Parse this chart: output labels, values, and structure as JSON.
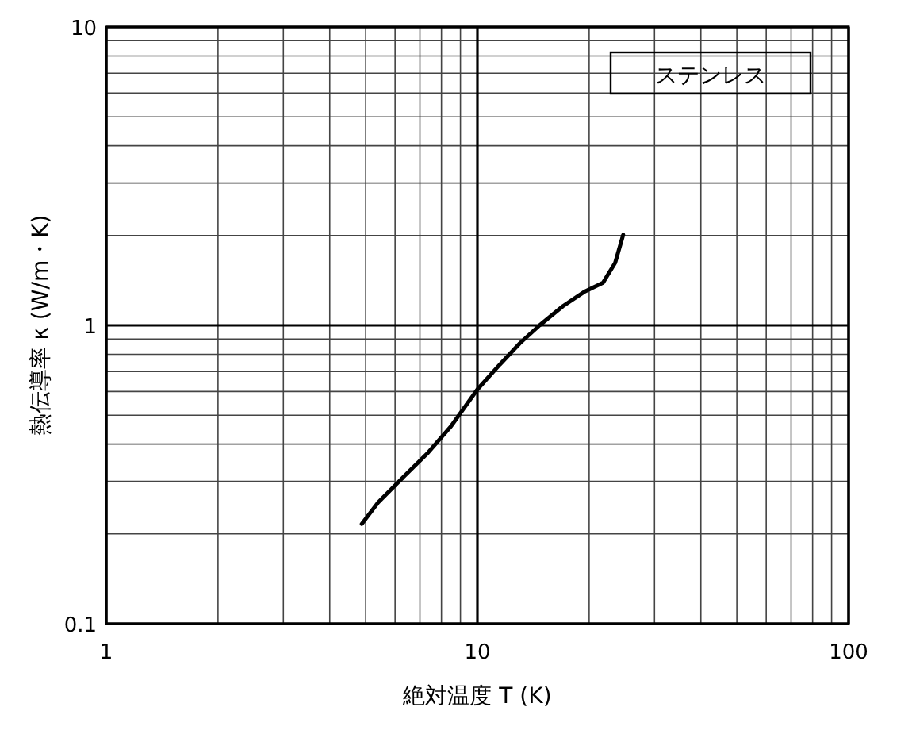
{
  "chart_data": {
    "type": "line",
    "xlabel": "絶対温度 T (K)",
    "ylabel": "熱伝導率 κ (W/m・K)",
    "annotations": [
      "ステンレス"
    ],
    "x": [
      4.88,
      5.4,
      6.05,
      7.37,
      8.5,
      10,
      11.5,
      13,
      14.7,
      17,
      19.5,
      21.8,
      23.5,
      24.7
    ],
    "series": [
      {
        "color": "#000000",
        "values": [
          0.216,
          0.255,
          0.294,
          0.375,
          0.46,
          0.61,
          0.74,
          0.87,
          1.0,
          1.16,
          1.3,
          1.39,
          1.62,
          2.01
        ]
      }
    ],
    "xlim": [
      1,
      100
    ],
    "ylim": [
      0.1,
      10
    ],
    "xticks": [
      1,
      10,
      100
    ],
    "yticks": [
      0.1,
      1,
      10
    ],
    "log": "xy",
    "grid": true
  }
}
